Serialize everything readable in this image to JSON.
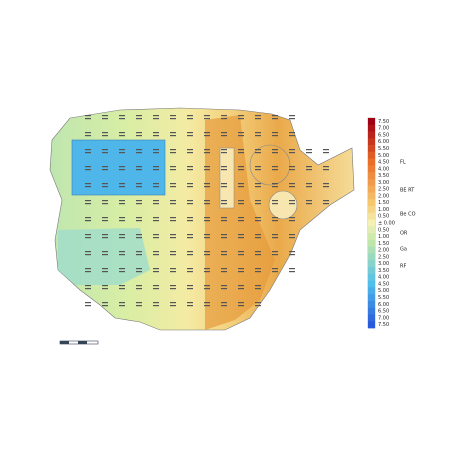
{
  "legend": {
    "labels": [
      "7.50",
      "7.00",
      "6.50",
      "6.00",
      "5.50",
      "5.00",
      "4.50",
      "4.00",
      "3.50",
      "3.00",
      "2.50",
      "2.00",
      "1.50",
      "1.00",
      "0.50",
      "± 0.00",
      "0.50",
      "1.00",
      "1.50",
      "2.00",
      "2.50",
      "3.00",
      "3.50",
      "4.00",
      "4.50",
      "5.00",
      "5.50",
      "6.00",
      "6.50",
      "7.00",
      "7.50"
    ]
  },
  "side_labels": [
    "FL",
    "BE RT",
    "Be CO",
    "OR",
    "Ga",
    "RF"
  ]
}
